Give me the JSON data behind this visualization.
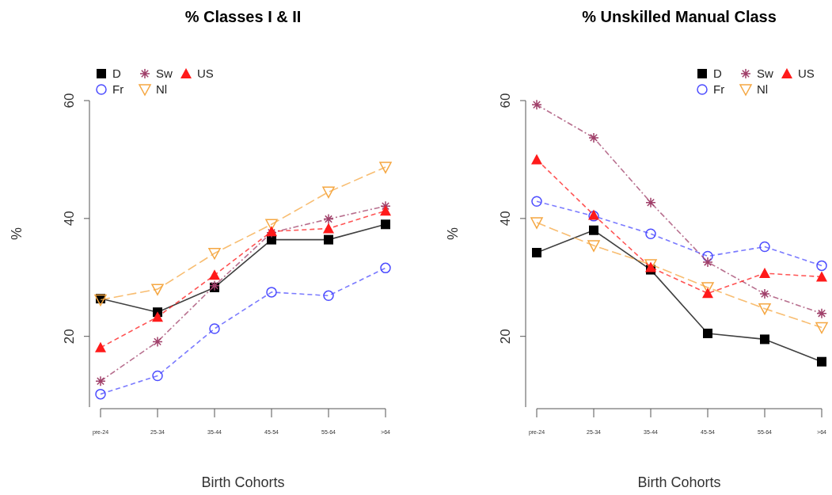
{
  "chart_data": [
    {
      "type": "line",
      "title": "% Classes I & II",
      "xlabel": "Birth Cohorts",
      "ylabel": "%",
      "categories": [
        "pre-24",
        "25-34",
        "35-44",
        "45-54",
        "55-64",
        ">64"
      ],
      "ylim": [
        8,
        60
      ],
      "yticks": [
        20,
        40,
        60
      ],
      "legend": "top left",
      "grid": false,
      "series": [
        {
          "name": "D",
          "color": "#000000",
          "marker": "square",
          "line_style": "solid",
          "values": [
            26.4,
            24.1,
            28.3,
            36.4,
            36.4,
            39.0
          ]
        },
        {
          "name": "Fr",
          "color": "#4d4dff",
          "marker": "circle",
          "line_style": "dashed",
          "values": [
            10.2,
            13.3,
            21.3,
            27.5,
            26.9,
            31.6
          ]
        },
        {
          "name": "Sw",
          "color": "#a0406a",
          "marker": "cross",
          "line_style": "dashdot",
          "values": [
            12.4,
            19.1,
            28.6,
            37.6,
            39.9,
            42.1
          ]
        },
        {
          "name": "Nl",
          "color": "#f5a742",
          "marker": "triangle-down",
          "line_style": "longdash",
          "values": [
            26.2,
            28.0,
            34.1,
            39.0,
            44.5,
            48.7
          ]
        },
        {
          "name": "US",
          "color": "#ff1a1a",
          "marker": "triangle",
          "line_style": "dashed",
          "values": [
            18.1,
            23.3,
            30.4,
            37.8,
            38.3,
            41.3
          ]
        }
      ]
    },
    {
      "type": "line",
      "title": "% Unskilled Manual Class",
      "xlabel": "Birth Cohorts",
      "ylabel": "%",
      "categories": [
        "pre-24",
        "25-34",
        "35-44",
        "45-54",
        "55-64",
        ">64"
      ],
      "ylim": [
        8,
        60
      ],
      "yticks": [
        20,
        40,
        60
      ],
      "legend": "top right",
      "grid": false,
      "series": [
        {
          "name": "D",
          "color": "#000000",
          "marker": "square",
          "line_style": "solid",
          "values": [
            34.2,
            38.0,
            31.3,
            20.5,
            19.5,
            15.7
          ]
        },
        {
          "name": "Fr",
          "color": "#4d4dff",
          "marker": "circle",
          "line_style": "dashed",
          "values": [
            42.9,
            40.4,
            37.4,
            33.6,
            35.2,
            32.0
          ]
        },
        {
          "name": "Sw",
          "color": "#a0406a",
          "marker": "cross",
          "line_style": "dashdot",
          "values": [
            59.3,
            53.7,
            42.7,
            32.6,
            27.2,
            23.9
          ]
        },
        {
          "name": "Nl",
          "color": "#f5a742",
          "marker": "triangle-down",
          "line_style": "longdash",
          "values": [
            39.3,
            35.4,
            32.2,
            28.3,
            24.7,
            21.5
          ]
        },
        {
          "name": "US",
          "color": "#ff1a1a",
          "marker": "triangle",
          "line_style": "dashed",
          "values": [
            50.0,
            40.6,
            31.7,
            27.3,
            30.7,
            30.1
          ]
        }
      ]
    }
  ]
}
